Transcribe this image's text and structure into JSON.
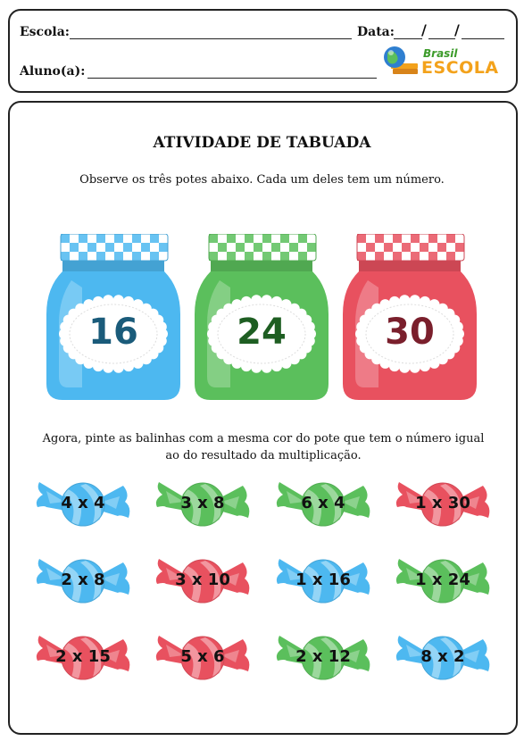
{
  "header": {
    "school_label": "Escola:",
    "date_label": "Data:",
    "date_sep1": "/",
    "date_sep2": "/",
    "student_label": "Aluno(a):",
    "logo": {
      "line1": "Brasil",
      "line2": "ESCOLA"
    }
  },
  "title": "ATIVIDADE DE TABUADA",
  "instruction1": "Observe os três potes abaixo. Cada um deles tem um número.",
  "instruction2": "Agora, pinte as balinhas com a mesma cor do pote que tem o número igual ao do resultado da multiplicação.",
  "colors": {
    "blue": "#4db8f0",
    "green": "#5bbf5c",
    "red": "#e8515f",
    "blue_text": "#1a5b7a",
    "green_text": "#1e5e22",
    "red_text": "#7a1f2c"
  },
  "jars": [
    {
      "number": "16",
      "color": "blue"
    },
    {
      "number": "24",
      "color": "green"
    },
    {
      "number": "30",
      "color": "red"
    }
  ],
  "candies": [
    {
      "label": "4 x 4",
      "color": "blue"
    },
    {
      "label": "3 x 8",
      "color": "green"
    },
    {
      "label": "6 x 4",
      "color": "green"
    },
    {
      "label": "1 x 30",
      "color": "red"
    },
    {
      "label": "2 x 8",
      "color": "blue"
    },
    {
      "label": "3 x 10",
      "color": "red"
    },
    {
      "label": "1 x 16",
      "color": "blue"
    },
    {
      "label": "1 x 24",
      "color": "green"
    },
    {
      "label": "2 x 15",
      "color": "red"
    },
    {
      "label": "5 x 6",
      "color": "red"
    },
    {
      "label": "2 x 12",
      "color": "green"
    },
    {
      "label": "8 x 2",
      "color": "blue"
    }
  ]
}
